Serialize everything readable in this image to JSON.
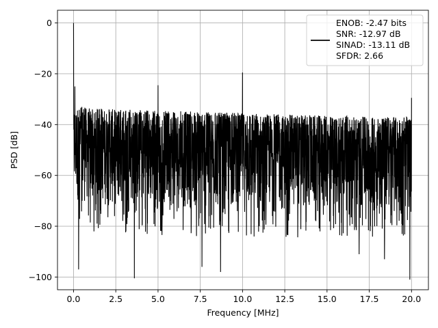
{
  "chart_data": {
    "type": "line",
    "xlabel": "Frequency [MHz]",
    "ylabel": "PSD [dB]",
    "xlim": [
      -0.95,
      21.0
    ],
    "ylim": [
      -105,
      5
    ],
    "xticks": [
      0.0,
      2.5,
      5.0,
      7.5,
      10.0,
      12.5,
      15.0,
      17.5,
      20.0
    ],
    "xtick_labels": [
      "0.0",
      "2.5",
      "5.0",
      "7.5",
      "10.0",
      "12.5",
      "15.0",
      "17.5",
      "20.0"
    ],
    "yticks": [
      0,
      -20,
      -40,
      -60,
      -80,
      -100
    ],
    "ytick_labels": [
      "0",
      "−20",
      "−40",
      "−60",
      "−80",
      "−100"
    ],
    "grid": true,
    "legend_position": "top-right",
    "legend_lines": [
      "ENOB: -2.47 bits",
      "SNR: -12.97 dB",
      "SINAD: -13.11 dB",
      "SFDR: 2.66"
    ],
    "line_color": "#000000",
    "noise_band": {
      "x": [
        0.0,
        0.5,
        1.0,
        2.5,
        5.0,
        7.5,
        10.0,
        12.5,
        15.0,
        17.5,
        20.0
      ],
      "upper_db": [
        -33,
        -33,
        -33.5,
        -34,
        -34.5,
        -35,
        -35.5,
        -36,
        -36.5,
        -37,
        -37
      ],
      "lower_db": [
        -70,
        -71,
        -72,
        -73,
        -74,
        -74,
        -75,
        -75,
        -75,
        -75,
        -75
      ]
    },
    "peaks": [
      {
        "x": 0.0,
        "y": 0
      },
      {
        "x": 0.08,
        "y": -25
      },
      {
        "x": 5.0,
        "y": -24.5
      },
      {
        "x": 10.0,
        "y": -19.5
      },
      {
        "x": 20.0,
        "y": -29.5
      }
    ],
    "dips": [
      {
        "x": 0.3,
        "y": -97
      },
      {
        "x": 3.6,
        "y": -100.5
      },
      {
        "x": 7.6,
        "y": -96
      },
      {
        "x": 8.7,
        "y": -98
      },
      {
        "x": 19.9,
        "y": -101
      },
      {
        "x": 16.9,
        "y": -91
      },
      {
        "x": 18.4,
        "y": -93
      }
    ]
  }
}
